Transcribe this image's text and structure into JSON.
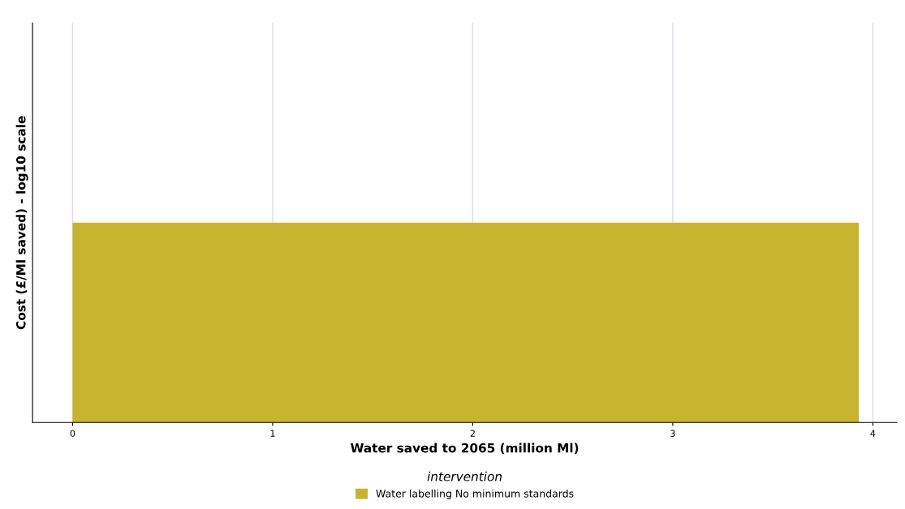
{
  "chart_data": {
    "type": "bar",
    "orientation": "horizontal",
    "xlabel": "Water saved to 2065 (million Ml)",
    "ylabel": "Cost (£/Ml saved) - log10 scale",
    "legend_title": "intervention",
    "categories": [
      null
    ],
    "series": [
      {
        "name": "Water labelling No minimum standards",
        "color": "#c7b42e",
        "values": [
          3.93
        ]
      }
    ],
    "xlim": [
      -0.2,
      4.12
    ],
    "xticks": [
      0,
      1,
      2,
      3,
      4
    ],
    "grid": "x",
    "legend": "bottom",
    "tick_labels": "x"
  }
}
